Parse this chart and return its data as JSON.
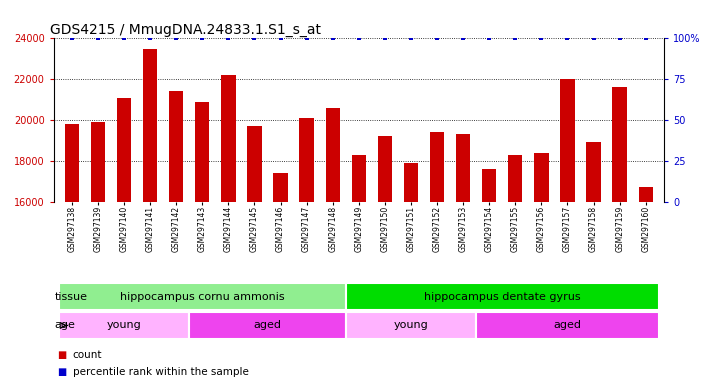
{
  "title": "GDS4215 / MmugDNA.24833.1.S1_s_at",
  "samples": [
    "GSM297138",
    "GSM297139",
    "GSM297140",
    "GSM297141",
    "GSM297142",
    "GSM297143",
    "GSM297144",
    "GSM297145",
    "GSM297146",
    "GSM297147",
    "GSM297148",
    "GSM297149",
    "GSM297150",
    "GSM297151",
    "GSM297152",
    "GSM297153",
    "GSM297154",
    "GSM297155",
    "GSM297156",
    "GSM297157",
    "GSM297158",
    "GSM297159",
    "GSM297160"
  ],
  "counts": [
    19800,
    19900,
    21100,
    23500,
    21400,
    20900,
    22200,
    19700,
    17400,
    20100,
    20600,
    18300,
    19200,
    17900,
    19400,
    19300,
    17600,
    18300,
    18400,
    22000,
    18900,
    21600,
    16700
  ],
  "percentile_rank": 100,
  "ylim_left": [
    16000,
    24000
  ],
  "ylim_right": [
    0,
    100
  ],
  "yticks_left": [
    16000,
    18000,
    20000,
    22000,
    24000
  ],
  "yticks_right": [
    0,
    25,
    50,
    75,
    100
  ],
  "bar_color": "#CC0000",
  "percentile_color": "#0000CC",
  "tissue_groups": [
    {
      "label": "hippocampus cornu ammonis",
      "start": 0,
      "end": 11,
      "color": "#90EE90"
    },
    {
      "label": "hippocampus dentate gyrus",
      "start": 11,
      "end": 23,
      "color": "#00DD00"
    }
  ],
  "age_groups": [
    {
      "label": "young",
      "start": 0,
      "end": 5,
      "color": "#FFB3FF"
    },
    {
      "label": "aged",
      "start": 5,
      "end": 11,
      "color": "#EE44EE"
    },
    {
      "label": "young",
      "start": 11,
      "end": 16,
      "color": "#FFB3FF"
    },
    {
      "label": "aged",
      "start": 16,
      "end": 23,
      "color": "#EE44EE"
    }
  ],
  "tissue_label": "tissue",
  "age_label": "age",
  "legend_count_label": "count",
  "legend_pct_label": "percentile rank within the sample",
  "title_fontsize": 10,
  "tick_fontsize": 7,
  "annotation_fontsize": 8,
  "bar_width": 0.55
}
